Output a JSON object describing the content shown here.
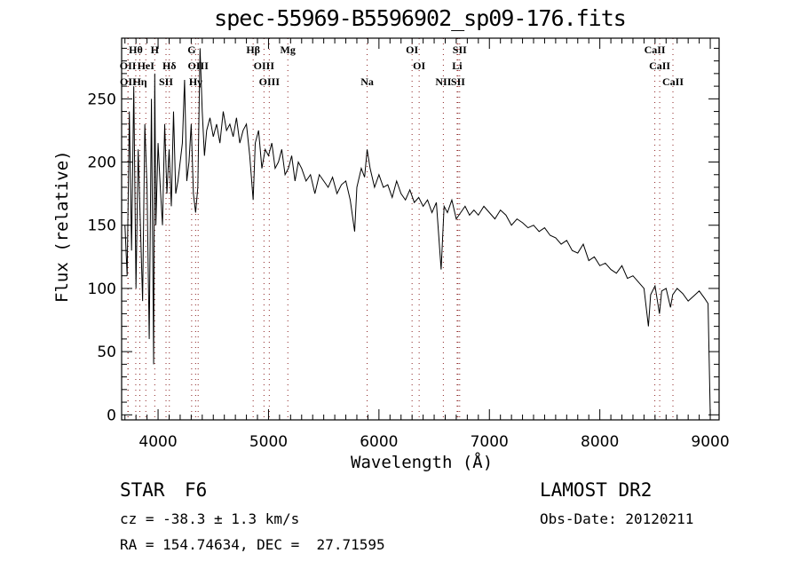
{
  "chart_data": {
    "type": "line",
    "title": "spec-55969-B5596902_sp09-176.fits",
    "xlabel": "Wavelength (Å)",
    "ylabel": "Flux (relative)",
    "xlim": [
      3670,
      9080
    ],
    "ylim": [
      -4,
      298
    ],
    "x_ticks": [
      "4000",
      "5000",
      "6000",
      "7000",
      "8000",
      "9000"
    ],
    "y_ticks": [
      "0",
      "50",
      "100",
      "150",
      "200",
      "250"
    ],
    "grid": false,
    "series": [
      {
        "name": "flux",
        "x": [
          3700,
          3720,
          3740,
          3760,
          3780,
          3800,
          3820,
          3840,
          3860,
          3880,
          3900,
          3920,
          3940,
          3960,
          3970,
          3980,
          4000,
          4020,
          4040,
          4060,
          4080,
          4100,
          4120,
          4140,
          4160,
          4180,
          4200,
          4220,
          4240,
          4260,
          4280,
          4300,
          4320,
          4340,
          4360,
          4380,
          4400,
          4420,
          4440,
          4470,
          4500,
          4530,
          4560,
          4590,
          4620,
          4650,
          4680,
          4710,
          4740,
          4770,
          4800,
          4830,
          4861,
          4880,
          4910,
          4940,
          4970,
          5000,
          5030,
          5060,
          5090,
          5120,
          5150,
          5180,
          5210,
          5240,
          5270,
          5300,
          5340,
          5380,
          5420,
          5460,
          5500,
          5540,
          5580,
          5620,
          5660,
          5700,
          5740,
          5780,
          5800,
          5840,
          5870,
          5893,
          5920,
          5960,
          6000,
          6040,
          6080,
          6120,
          6160,
          6200,
          6240,
          6280,
          6320,
          6360,
          6400,
          6440,
          6480,
          6520,
          6563,
          6590,
          6620,
          6660,
          6700,
          6740,
          6780,
          6820,
          6860,
          6900,
          6950,
          7000,
          7050,
          7100,
          7150,
          7200,
          7250,
          7300,
          7350,
          7400,
          7450,
          7500,
          7550,
          7600,
          7650,
          7700,
          7750,
          7800,
          7850,
          7900,
          7950,
          8000,
          8050,
          8100,
          8150,
          8200,
          8250,
          8300,
          8350,
          8400,
          8440,
          8460,
          8500,
          8540,
          8560,
          8600,
          8640,
          8660,
          8700,
          8750,
          8800,
          8850,
          8900,
          8950,
          8980,
          9000
        ],
        "y": [
          150,
          110,
          240,
          130,
          260,
          100,
          210,
          150,
          90,
          230,
          180,
          60,
          250,
          40,
          270,
          150,
          215,
          180,
          150,
          230,
          175,
          210,
          165,
          240,
          175,
          185,
          200,
          215,
          265,
          185,
          200,
          230,
          175,
          160,
          180,
          290,
          240,
          205,
          225,
          235,
          220,
          230,
          215,
          240,
          225,
          230,
          220,
          235,
          215,
          225,
          230,
          205,
          170,
          215,
          225,
          195,
          210,
          205,
          215,
          195,
          200,
          210,
          190,
          195,
          205,
          185,
          200,
          195,
          185,
          190,
          175,
          190,
          185,
          180,
          188,
          175,
          182,
          185,
          170,
          145,
          180,
          195,
          188,
          210,
          195,
          180,
          190,
          180,
          182,
          172,
          185,
          175,
          170,
          178,
          168,
          172,
          165,
          170,
          160,
          168,
          115,
          165,
          160,
          170,
          155,
          160,
          165,
          158,
          162,
          158,
          165,
          160,
          155,
          162,
          158,
          150,
          155,
          152,
          148,
          150,
          145,
          148,
          142,
          140,
          135,
          138,
          130,
          128,
          135,
          122,
          125,
          118,
          120,
          115,
          112,
          118,
          108,
          110,
          105,
          100,
          70,
          95,
          102,
          80,
          98,
          100,
          85,
          95,
          100,
          96,
          90,
          94,
          98,
          92,
          88,
          0
        ]
      }
    ],
    "line_markers": [
      {
        "label": "Hθ",
        "wavelength": 3798,
        "row": 1
      },
      {
        "label": "H",
        "wavelength": 3970,
        "row": 1
      },
      {
        "label": "G",
        "wavelength": 4304,
        "row": 1
      },
      {
        "label": "Hβ",
        "wavelength": 4861,
        "row": 1
      },
      {
        "label": "Mg",
        "wavelength": 5175,
        "row": 1
      },
      {
        "label": "OI",
        "wavelength": 6300,
        "row": 1
      },
      {
        "label": "SII",
        "wavelength": 6731,
        "row": 1
      },
      {
        "label": "CaII",
        "wavelength": 8498,
        "row": 1
      },
      {
        "label": "OII",
        "wavelength": 3727,
        "row": 2
      },
      {
        "label": "HeI",
        "wavelength": 3889,
        "row": 2
      },
      {
        "label": "Hδ",
        "wavelength": 4102,
        "row": 2
      },
      {
        "label": "OIII",
        "wavelength": 4363,
        "row": 2
      },
      {
        "label": "OIII",
        "wavelength": 4959,
        "row": 2
      },
      {
        "label": "OI",
        "wavelength": 6364,
        "row": 2
      },
      {
        "label": "Li",
        "wavelength": 6708,
        "row": 2
      },
      {
        "label": "CaII",
        "wavelength": 8542,
        "row": 2
      },
      {
        "label": "OII",
        "wavelength": 3729,
        "row": 3
      },
      {
        "label": "Hη",
        "wavelength": 3835,
        "row": 3
      },
      {
        "label": "SII",
        "wavelength": 4072,
        "row": 3
      },
      {
        "label": "Hγ",
        "wavelength": 4340,
        "row": 3
      },
      {
        "label": "OIII",
        "wavelength": 5007,
        "row": 3
      },
      {
        "label": "Na",
        "wavelength": 5893,
        "row": 3
      },
      {
        "label": "NII",
        "wavelength": 6583,
        "row": 3
      },
      {
        "label": "SII",
        "wavelength": 6716,
        "row": 3
      },
      {
        "label": "CaII",
        "wavelength": 8662,
        "row": 3
      }
    ]
  },
  "info": {
    "object_class": "STAR",
    "subclass": "F6",
    "redshift": "cz = -38.3 ± 1.3 km/s",
    "coords": "RA = 154.74634, DEC =  27.71595",
    "survey": "LAMOST DR2",
    "obs_date": "Obs-Date: 20120211"
  },
  "colors": {
    "line": "#000000",
    "marker": "#8b2020"
  }
}
